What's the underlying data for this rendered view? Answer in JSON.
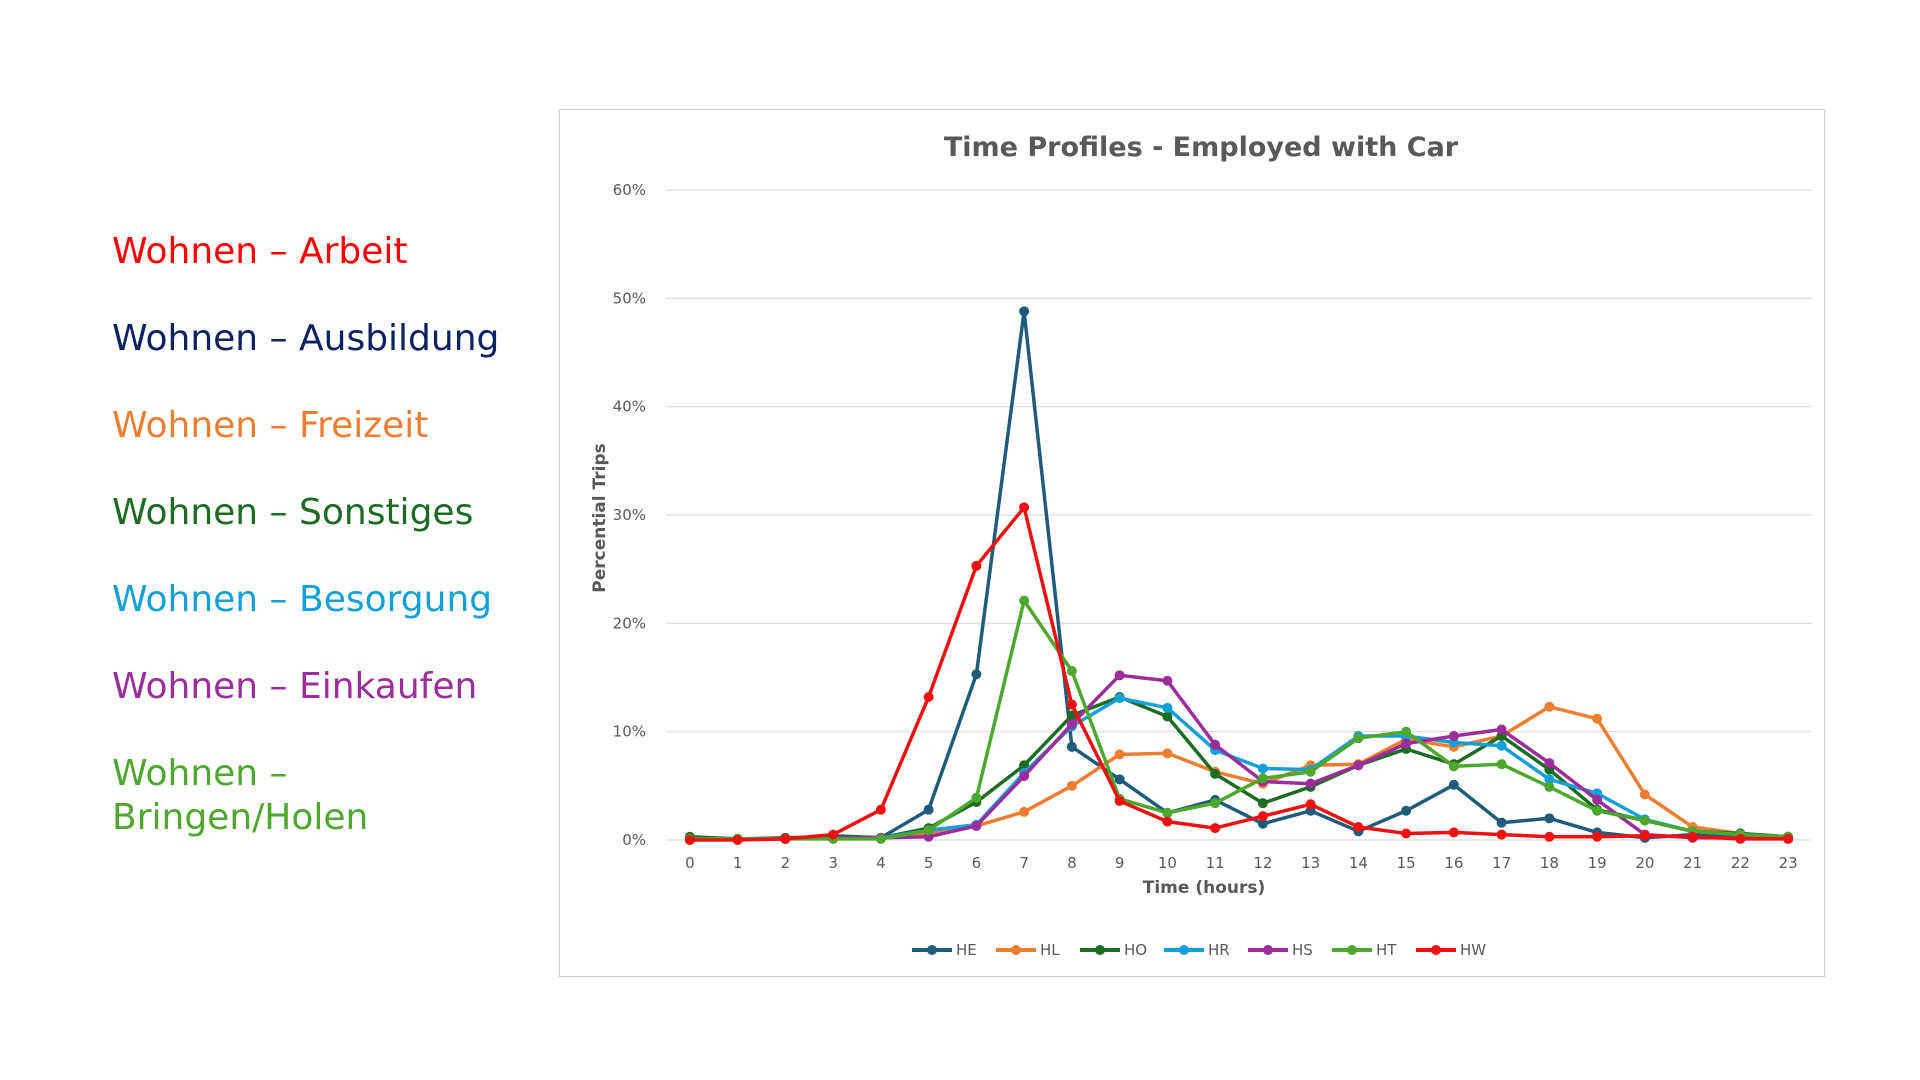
{
  "side_legend": [
    {
      "label": "Wohnen – Arbeit",
      "color": "#ff0000"
    },
    {
      "label": "Wohnen – Ausbildung",
      "color": "#0b2160"
    },
    {
      "label": "Wohnen – Freizeit",
      "color": "#ed7d31"
    },
    {
      "label": "Wohnen – Sonstiges",
      "color": "#1e6b24"
    },
    {
      "label": "Wohnen – Besorgung",
      "color": "#13a0d8"
    },
    {
      "label": "Wohnen – Einkaufen",
      "color": "#9b2e9b"
    },
    {
      "label": "Wohnen – Bringen/Holen",
      "color": "#4ea72e"
    }
  ],
  "chart_data": {
    "type": "line",
    "title": "Time Profiles - Employed with Car",
    "xlabel": "Time (hours)",
    "ylabel": "Percential Trips",
    "x": [
      0,
      1,
      2,
      3,
      4,
      5,
      6,
      7,
      8,
      9,
      10,
      11,
      12,
      13,
      14,
      15,
      16,
      17,
      18,
      19,
      20,
      21,
      22,
      23
    ],
    "ylim": [
      0,
      60
    ],
    "yticks": [
      0,
      10,
      20,
      30,
      40,
      50,
      60
    ],
    "ytick_labels": [
      "0%",
      "10%",
      "20%",
      "30%",
      "40%",
      "50%",
      "60%"
    ],
    "grid": true,
    "legend_position": "bottom",
    "series": [
      {
        "name": "HE",
        "color": "#1f5c7a",
        "values": [
          0.2,
          0.1,
          0.1,
          0.4,
          0.2,
          2.8,
          15.3,
          48.8,
          8.6,
          5.6,
          2.5,
          3.7,
          1.5,
          2.7,
          0.8,
          2.7,
          5.1,
          1.6,
          2.0,
          0.7,
          0.2,
          0.5,
          0.5,
          0.3
        ]
      },
      {
        "name": "HL",
        "color": "#ed7d31",
        "values": [
          0.1,
          0.1,
          0.1,
          0.2,
          0.2,
          0.6,
          1.3,
          2.6,
          5.0,
          7.9,
          8.0,
          6.3,
          5.2,
          6.9,
          7.0,
          9.3,
          8.6,
          9.6,
          12.3,
          11.2,
          4.2,
          1.2,
          0.6,
          0.3
        ]
      },
      {
        "name": "HO",
        "color": "#1e6b24",
        "values": [
          0.3,
          0.1,
          0.2,
          0.3,
          0.2,
          1.1,
          3.5,
          6.9,
          11.5,
          13.2,
          11.4,
          6.1,
          3.4,
          4.9,
          6.9,
          8.4,
          7.0,
          9.6,
          6.5,
          2.8,
          1.8,
          0.8,
          0.6,
          0.3
        ]
      },
      {
        "name": "HR",
        "color": "#13a0d8",
        "values": [
          0.1,
          0.1,
          0.1,
          0.2,
          0.2,
          0.9,
          1.4,
          6.2,
          10.5,
          13.1,
          12.2,
          8.3,
          6.6,
          6.5,
          9.6,
          9.6,
          9.0,
          8.7,
          5.6,
          4.3,
          1.9,
          0.8,
          0.5,
          0.3
        ]
      },
      {
        "name": "HS",
        "color": "#9b2e9b",
        "values": [
          0.1,
          0.1,
          0.1,
          0.2,
          0.2,
          0.3,
          1.3,
          5.9,
          10.7,
          15.2,
          14.7,
          8.8,
          5.4,
          5.2,
          6.9,
          8.9,
          9.6,
          10.2,
          7.1,
          3.7,
          0.5,
          0.2,
          0.2,
          0.1
        ]
      },
      {
        "name": "HT",
        "color": "#4ea72e",
        "values": [
          0.1,
          0.1,
          0.1,
          0.1,
          0.1,
          0.9,
          3.9,
          22.1,
          15.6,
          3.8,
          2.5,
          3.4,
          5.7,
          6.3,
          9.4,
          10.0,
          6.8,
          7.0,
          4.9,
          2.7,
          1.8,
          0.8,
          0.5,
          0.3
        ]
      },
      {
        "name": "HW",
        "color": "#ee1111",
        "values": [
          0.0,
          0.0,
          0.1,
          0.5,
          2.8,
          13.2,
          25.3,
          30.7,
          12.5,
          3.6,
          1.7,
          1.1,
          2.2,
          3.3,
          1.2,
          0.6,
          0.7,
          0.5,
          0.3,
          0.3,
          0.4,
          0.3,
          0.1,
          0.1
        ]
      }
    ]
  }
}
